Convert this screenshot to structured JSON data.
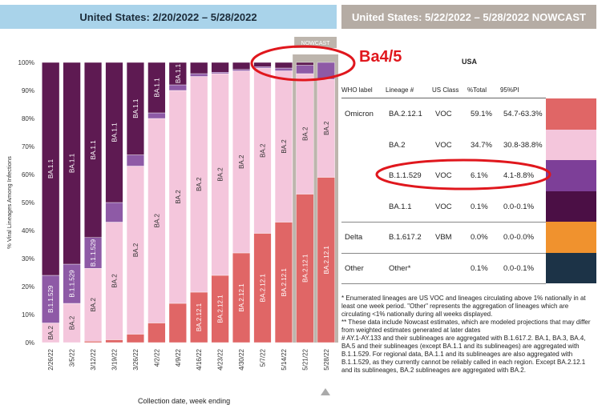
{
  "header": {
    "left_title": "United States: 2/20/2022 – 5/28/2022",
    "right_title": "United States: 5/22/2022 – 5/28/2022 NOWCAST"
  },
  "annotation": {
    "text": "Ba4/5"
  },
  "nowcast_tab": "NOWCAST",
  "chart_data": {
    "type": "bar",
    "stacked": true,
    "ylabel": "% Viral Lineages Among Infections",
    "xlabel": "Collection date, week ending",
    "yticks": [
      "0%",
      "10%",
      "20%",
      "30%",
      "40%",
      "50%",
      "60%",
      "70%",
      "80%",
      "90%",
      "100%"
    ],
    "ylim": [
      0,
      100
    ],
    "categories": [
      "2/26/22",
      "3/5/22",
      "3/12/22",
      "3/19/22",
      "3/26/22",
      "4/2/22",
      "4/9/22",
      "4/16/22",
      "4/23/22",
      "4/30/22",
      "5/7/22",
      "5/14/22",
      "5/21/22",
      "5/28/22"
    ],
    "nowcast_categories": [
      "5/21/22",
      "5/28/22"
    ],
    "series": [
      {
        "name": "BA.2.12.1",
        "color": "#e06666",
        "values": [
          0,
          0,
          0.5,
          1,
          3,
          7,
          14,
          18,
          24,
          32,
          39,
          43,
          53,
          59
        ]
      },
      {
        "name": "BA.2",
        "color": "#f4c6dc",
        "values": [
          7,
          14,
          26,
          42,
          60,
          73,
          76,
          77,
          72,
          65,
          59,
          54,
          43,
          35
        ]
      },
      {
        "name": "B.1.1.529",
        "color": "#8e5aa6",
        "values": [
          17,
          14,
          11,
          7,
          4,
          2,
          2,
          1,
          0.5,
          0.5,
          0.5,
          1,
          3,
          6
        ]
      },
      {
        "name": "BA.1.1",
        "color": "#5e1a52",
        "values": [
          76,
          72,
          62.5,
          50,
          33,
          18,
          8,
          4,
          3.5,
          2.5,
          1.5,
          2,
          1,
          0
        ]
      }
    ],
    "bar_labels": [
      [
        [
          "BA.2"
        ],
        [
          "B.1.1.529",
          "BA.1.1"
        ]
      ],
      [
        [
          "BA.2"
        ],
        [
          "B.1.1.529",
          "BA.1.1"
        ]
      ],
      [
        [
          "BA.2"
        ],
        [
          "B.1.1.529",
          "BA.1.1"
        ]
      ],
      [
        [
          "BA.2"
        ],
        [
          "BA.1.1"
        ]
      ],
      [
        [
          "BA.2"
        ],
        [
          "BA.1.1"
        ]
      ],
      [
        [
          "BA.2"
        ],
        [
          "BA.1.1"
        ]
      ],
      [
        [
          "BA.2"
        ],
        [
          "BA.1.1"
        ]
      ],
      [
        [
          "BA.2.12.1"
        ],
        [
          "BA.2"
        ]
      ],
      [
        [
          "BA.2.12.1"
        ],
        [
          "BA.2"
        ]
      ],
      [
        [
          "BA.2.12.1"
        ],
        [
          "BA.2"
        ]
      ],
      [
        [
          "BA.2.12.1"
        ],
        [
          "BA.2"
        ]
      ],
      [
        [
          "BA.2.12.1"
        ],
        [
          "BA.2"
        ]
      ],
      [
        [
          "BA.2.12.1"
        ],
        [
          "BA.2"
        ]
      ],
      [
        [
          "BA.2.12.1"
        ],
        [
          "BA.2"
        ]
      ]
    ]
  },
  "table": {
    "title": "USA",
    "columns": [
      "WHO label",
      "Lineage #",
      "US Class",
      "%Total",
      "95%PI"
    ],
    "rows": [
      {
        "who": "Omicron",
        "lineage": "BA.2.12.1",
        "cls": "VOC",
        "total": "59.1%",
        "pi": "54.7-63.3%",
        "color": "#e06666"
      },
      {
        "who": "",
        "lineage": "BA.2",
        "cls": "VOC",
        "total": "34.7%",
        "pi": "30.8-38.8%",
        "color": "#f4c6dc"
      },
      {
        "who": "",
        "lineage": "B.1.1.529",
        "cls": "VOC",
        "total": "6.1%",
        "pi": "4.1-8.8%",
        "color": "#7d3f98"
      },
      {
        "who": "",
        "lineage": "BA.1.1",
        "cls": "VOC",
        "total": "0.1%",
        "pi": "0.0-0.1%",
        "color": "#4b0f45"
      },
      {
        "who": "Delta",
        "lineage": "B.1.617.2",
        "cls": "VBM",
        "total": "0.0%",
        "pi": "0.0-0.0%",
        "color": "#f0922e"
      },
      {
        "who": "Other",
        "lineage": "Other*",
        "cls": "",
        "total": "0.1%",
        "pi": "0.0-0.1%",
        "color": "#1c3347"
      }
    ]
  },
  "notes": [
    "*     Enumerated lineages are US VOC and lineages circulating above 1% nationally in at least one week period. \"Other\" represents the aggregation of lineages which are circulating <1% nationally during all weeks displayed.",
    "**     These data include Nowcast estimates, which are modeled projections that may differ from weighted estimates generated at later dates",
    "#     AY.1-AY.133 and their sublineages are aggregated with B.1.617.2. BA.1, BA.3, BA.4, BA.5 and their sublineages (except BA.1.1 and its sublineages) are aggregated with B.1.1.529. For regional data, BA.1.1 and its sublineages are also aggregated with B.1.1.529, as they currently cannot be reliably called in each region. Except BA.2.12.1 and its sublineages, BA.2 sublineages are aggregated with BA.2."
  ]
}
